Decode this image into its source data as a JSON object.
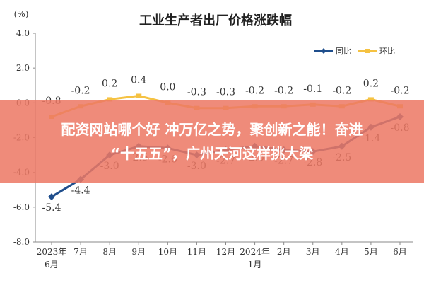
{
  "chart_data": {
    "type": "line",
    "title": "工业生产者出厂价格涨跌幅",
    "ylabel": "(%)",
    "ylim": [
      -8.0,
      4.0
    ],
    "yticks": [
      "4.0",
      "2.0",
      "0.0",
      "-2.0",
      "-4.0",
      "-6.0",
      "-8.0"
    ],
    "categories": [
      [
        "2023年",
        "6月"
      ],
      [
        "7月"
      ],
      [
        "8月"
      ],
      [
        "9月"
      ],
      [
        "10月"
      ],
      [
        "11月"
      ],
      [
        "12月"
      ],
      [
        "2024年",
        "1月"
      ],
      [
        "2月"
      ],
      [
        "3月"
      ],
      [
        "4月"
      ],
      [
        "5月"
      ],
      [
        "6月"
      ]
    ],
    "series": [
      {
        "name": "同比",
        "color": "#1f4e8c",
        "values": [
          -5.4,
          -4.4,
          -3.0,
          -2.5,
          -2.6,
          -3.0,
          -2.7,
          -2.5,
          -2.7,
          -2.8,
          -2.5,
          -1.4,
          -0.8
        ],
        "labels": [
          "-5.4",
          "-4.4",
          "-3.0",
          "-2.5",
          "-2.6",
          "-3.0",
          "-2.7",
          "-2.5",
          "-2.7",
          "-2.8",
          "-2.5",
          "-1.4",
          "-0.8"
        ]
      },
      {
        "name": "环比",
        "color": "#f5c242",
        "values": [
          -0.8,
          -0.2,
          0.2,
          0.4,
          0.0,
          -0.3,
          -0.3,
          -0.2,
          -0.2,
          -0.1,
          -0.2,
          0.2,
          -0.2
        ],
        "labels": [
          "-0.8",
          "-0.2",
          "0.2",
          "0.4",
          "0.0",
          "-0.3",
          "-0.3",
          "-0.2",
          "-0.2",
          "-0.1",
          "-0.2",
          "0.2",
          "-0.2"
        ]
      }
    ],
    "legend_position": "top-right",
    "grid": false
  },
  "banner": {
    "line1": "配资网站哪个好 冲万亿之势，聚创新之能！奋进",
    "line2": "“十五五”，广州天河这样挑大梁"
  }
}
